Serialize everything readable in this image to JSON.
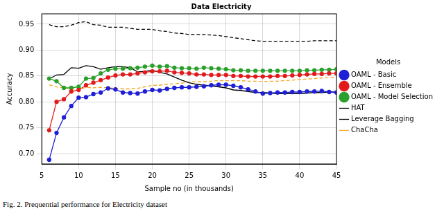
{
  "chart_data": {
    "type": "line",
    "title": "Data Electricity",
    "x_label": "Sample no (in thousands)",
    "y_label": "Accuracy",
    "caption": "Fig. 2. Prequential performance for Electricity dataset",
    "legend_title": "Models",
    "legend": "right",
    "grid": true,
    "xlim": [
      5,
      45
    ],
    "xticks": [
      5,
      10,
      15,
      20,
      25,
      30,
      35,
      40,
      45
    ],
    "ylim": [
      0.68,
      0.97
    ],
    "yticks": [
      {
        "value": 0.7,
        "label": "0.70"
      },
      0.75,
      {
        "value": 0.8,
        "label": "0.80"
      },
      0.85,
      {
        "value": 0.9,
        "label": "0.90"
      },
      0.95
    ],
    "x": [
      6,
      7,
      8,
      9,
      10,
      11,
      12,
      13,
      14,
      15,
      16,
      17,
      18,
      19,
      20,
      21,
      22,
      23,
      24,
      25,
      26,
      27,
      28,
      29,
      30,
      31,
      32,
      33,
      34,
      35,
      36,
      37,
      38,
      39,
      40,
      41,
      42,
      43,
      44,
      45
    ],
    "series": [
      {
        "name": "OAML - Basic",
        "color": "#1f1fd6",
        "marker": "circle",
        "line_style": "solid",
        "values": [
          0.688,
          0.74,
          0.77,
          0.792,
          0.808,
          0.809,
          0.815,
          0.818,
          0.826,
          0.824,
          0.818,
          0.817,
          0.816,
          0.82,
          0.823,
          0.822,
          0.825,
          0.827,
          0.828,
          0.828,
          0.829,
          0.83,
          0.832,
          0.833,
          0.833,
          0.831,
          0.828,
          0.824,
          0.82,
          0.816,
          0.817,
          0.818,
          0.818,
          0.819,
          0.819,
          0.82,
          0.82,
          0.821,
          0.819,
          0.818
        ]
      },
      {
        "name": "OAML - Ensemble",
        "color": "#e31a1c",
        "marker": "circle",
        "line_style": "solid",
        "values": [
          0.745,
          0.8,
          0.805,
          0.82,
          0.823,
          0.832,
          0.837,
          0.842,
          0.847,
          0.851,
          0.853,
          0.853,
          0.855,
          0.857,
          0.859,
          0.859,
          0.86,
          0.857,
          0.856,
          0.855,
          0.853,
          0.853,
          0.852,
          0.852,
          0.852,
          0.85,
          0.85,
          0.849,
          0.849,
          0.849,
          0.849,
          0.85,
          0.85,
          0.851,
          0.852,
          0.853,
          0.854,
          0.854,
          0.855,
          0.855
        ]
      },
      {
        "name": "OAML - Model Selection",
        "color": "#2ca02c",
        "marker": "circle",
        "line_style": "solid",
        "values": [
          0.845,
          0.84,
          0.827,
          0.827,
          0.829,
          0.845,
          0.846,
          0.855,
          0.862,
          0.864,
          0.864,
          0.865,
          0.866,
          0.868,
          0.87,
          0.868,
          0.869,
          0.866,
          0.865,
          0.865,
          0.864,
          0.866,
          0.865,
          0.864,
          0.863,
          0.861,
          0.861,
          0.86,
          0.86,
          0.86,
          0.86,
          0.86,
          0.86,
          0.86,
          0.86,
          0.861,
          0.861,
          0.862,
          0.862,
          0.863
        ]
      },
      {
        "name": "HAT",
        "color": "#000000",
        "marker": "none",
        "line_style": "solid",
        "values": [
          0.844,
          0.852,
          0.853,
          0.866,
          0.865,
          0.87,
          0.868,
          0.863,
          0.866,
          0.868,
          0.868,
          0.866,
          0.858,
          0.859,
          0.861,
          0.857,
          0.854,
          0.848,
          0.842,
          0.837,
          0.834,
          0.832,
          0.831,
          0.829,
          0.827,
          0.823,
          0.822,
          0.82,
          0.818,
          0.818,
          0.817,
          0.816,
          0.816,
          0.816,
          0.816,
          0.817,
          0.818,
          0.818,
          0.819,
          0.819
        ]
      },
      {
        "name": "Leverage Bagging",
        "color": "#000000",
        "marker": "none",
        "line_style": "dashed",
        "values": [
          0.949,
          0.945,
          0.945,
          0.948,
          0.953,
          0.955,
          0.949,
          0.948,
          0.944,
          0.944,
          0.944,
          0.942,
          0.94,
          0.94,
          0.94,
          0.937,
          0.936,
          0.933,
          0.932,
          0.93,
          0.93,
          0.93,
          0.929,
          0.928,
          0.926,
          0.924,
          0.922,
          0.92,
          0.918,
          0.917,
          0.917,
          0.917,
          0.917,
          0.917,
          0.917,
          0.917,
          0.918,
          0.918,
          0.918,
          0.918
        ]
      },
      {
        "name": "ChaCha",
        "color": "#f5a623",
        "marker": "none",
        "line_style": "dashed",
        "values": [
          0.833,
          0.829,
          0.827,
          0.825,
          0.824,
          0.828,
          0.827,
          0.828,
          0.827,
          0.826,
          0.825,
          0.825,
          0.826,
          0.829,
          0.832,
          0.832,
          0.834,
          0.835,
          0.836,
          0.838,
          0.839,
          0.839,
          0.84,
          0.841,
          0.841,
          0.841,
          0.841,
          0.84,
          0.84,
          0.839,
          0.84,
          0.84,
          0.841,
          0.842,
          0.843,
          0.844,
          0.845,
          0.846,
          0.847,
          0.848
        ]
      }
    ]
  }
}
